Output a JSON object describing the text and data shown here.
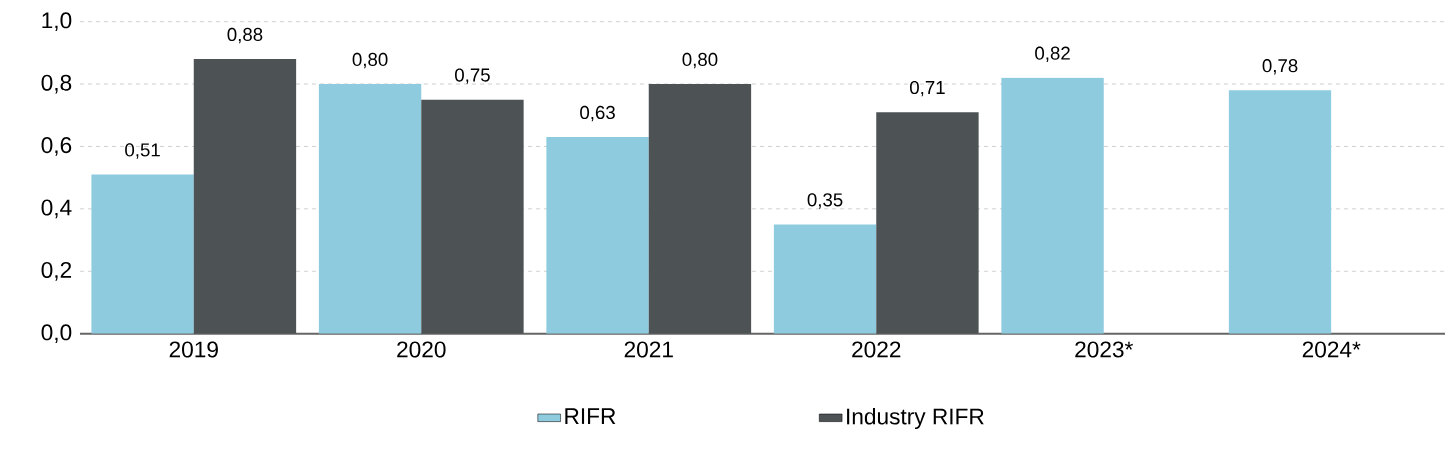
{
  "chart_data": {
    "type": "bar",
    "categories": [
      "2019",
      "2020",
      "2021",
      "2022",
      "2023*",
      "2024*"
    ],
    "series": [
      {
        "name": "RIFR",
        "color": "#8ecbde",
        "values": [
          0.51,
          0.8,
          0.63,
          0.35,
          0.82,
          0.78
        ],
        "value_labels": [
          "0,51",
          "0,80",
          "0,63",
          "0,35",
          "0,82",
          "0,78"
        ]
      },
      {
        "name": "Industry RIFR",
        "color": "#4d5255",
        "values": [
          0.88,
          0.75,
          0.8,
          0.71,
          null,
          null
        ],
        "value_labels": [
          "0,88",
          "0,75",
          "0,80",
          "0,71",
          null,
          null
        ]
      }
    ],
    "ylim": [
      0,
      1.0
    ],
    "yticks": [
      {
        "value": 0,
        "label": "0,0"
      },
      {
        "value": 0.2,
        "label": "0,2"
      },
      {
        "value": 0.4,
        "label": "0,4"
      },
      {
        "value": 0.6,
        "label": "0,6"
      },
      {
        "value": 0.8,
        "label": "0,8"
      },
      {
        "value": 1.0,
        "label": "1,0"
      }
    ],
    "grid": "y",
    "legend": "bottom"
  }
}
